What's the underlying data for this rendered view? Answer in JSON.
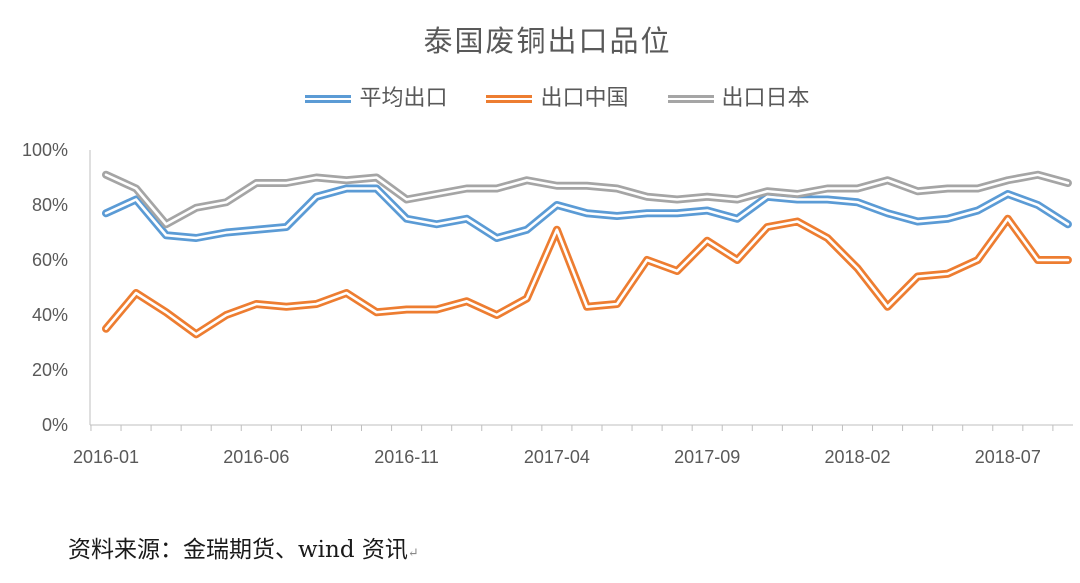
{
  "chart_data": {
    "type": "line",
    "title": "泰国废铜出口品位",
    "x": [
      "2016-01",
      "2016-02",
      "2016-03",
      "2016-04",
      "2016-05",
      "2016-06",
      "2016-07",
      "2016-08",
      "2016-09",
      "2016-10",
      "2016-11",
      "2016-12",
      "2017-01",
      "2017-02",
      "2017-03",
      "2017-04",
      "2017-05",
      "2017-06",
      "2017-07",
      "2017-08",
      "2017-09",
      "2017-10",
      "2017-11",
      "2017-12",
      "2018-01",
      "2018-02",
      "2018-03",
      "2018-04",
      "2018-05",
      "2018-06",
      "2018-07",
      "2018-08",
      "2018-09"
    ],
    "x_tick_labels": [
      "2016-01",
      "2016-06",
      "2016-11",
      "2017-04",
      "2017-09",
      "2018-02",
      "2018-07"
    ],
    "y_tick_labels": [
      "0%",
      "20%",
      "40%",
      "60%",
      "80%",
      "100%"
    ],
    "ylim": [
      0,
      100
    ],
    "y_unit": "%",
    "grid": false,
    "legend_position": "top",
    "series": [
      {
        "name": "平均出口",
        "color": "#5b9bd5",
        "values": [
          77,
          82,
          69,
          68,
          70,
          71,
          72,
          83,
          86,
          86,
          75,
          73,
          75,
          68,
          71,
          80,
          77,
          76,
          77,
          77,
          78,
          75,
          83,
          82,
          82,
          81,
          77,
          74,
          75,
          78,
          84,
          80,
          73
        ]
      },
      {
        "name": "出口中国",
        "color": "#ed7d31",
        "values": [
          35,
          48,
          41,
          33,
          40,
          44,
          43,
          44,
          48,
          41,
          42,
          42,
          45,
          40,
          46,
          71,
          43,
          44,
          60,
          56,
          67,
          60,
          72,
          74,
          68,
          57,
          43,
          54,
          55,
          60,
          75,
          60,
          60
        ]
      },
      {
        "name": "出口日本",
        "color": "#a5a5a5",
        "values": [
          91,
          86,
          73,
          79,
          81,
          88,
          88,
          90,
          89,
          90,
          82,
          84,
          86,
          86,
          89,
          87,
          87,
          86,
          83,
          82,
          83,
          82,
          85,
          84,
          86,
          86,
          89,
          85,
          86,
          86,
          89,
          91,
          88
        ]
      }
    ]
  },
  "source_text": "资料来源：金瑞期货、wind 资讯",
  "source_mark": "↵"
}
